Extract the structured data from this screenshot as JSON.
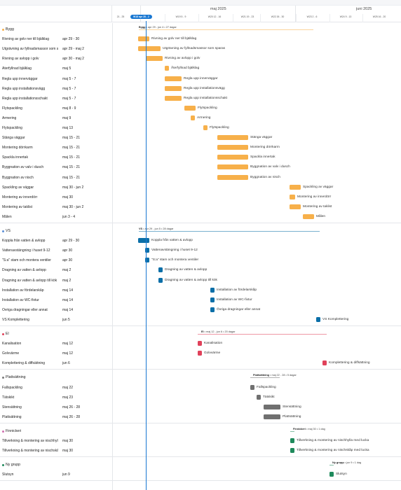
{
  "header": {
    "months": [
      {
        "label": "maj 2025"
      },
      {
        "label": "juni 2025"
      }
    ],
    "weeks": [
      {
        "label": "21 - 25"
      },
      {
        "label": "W18 apr 28 - 2",
        "current": true
      },
      {
        "label": "W19 5 - 9"
      },
      {
        "label": "W20 12 - 16"
      },
      {
        "label": "W21 19 - 23"
      },
      {
        "label": "W22 26 - 30"
      },
      {
        "label": "W23 2 - 6"
      },
      {
        "label": "W24 9 - 13"
      },
      {
        "label": "W25 16 - 20"
      }
    ]
  },
  "colors": {
    "Bygg": "#f7b04a",
    "VS": "#0b6fa8",
    "El": "#e0415a",
    "Plattsattning": "#707070",
    "Finnickeri": "#1f8a5c",
    "NyGrupp": "#1f8a5c",
    "accent": "#1877d2"
  },
  "groups": [
    {
      "id": "bygg",
      "name": "Bygg",
      "color": "#f7b04a",
      "dot": "#f7b04a",
      "summary": {
        "name": "Bygg",
        "text": " • apr 29 - jun 4 • 27 dagar"
      },
      "tasks": [
        {
          "name": "Rivning av golv ner till bjälklag",
          "dates": "apr 29 - 30",
          "label": "Rivning av golv ner till bjälklag"
        },
        {
          "name": "Utgrävning av fyllnadsmassor som sparas",
          "dates": "apr 29 - maj 2",
          "label": "Utgrävning av fyllnadsmassor som sparas"
        },
        {
          "name": "Rivning av avlopp i golv",
          "dates": "apr 30 - maj 2",
          "label": "Rivning av avlopp i golv"
        },
        {
          "name": "Återfyllnad bjälklag",
          "dates": "maj 5",
          "label": "Återfyllnad bjälklag"
        },
        {
          "name": "Regla upp innerväggar",
          "dates": "maj 5 - 7",
          "label": "Regla upp innerväggar"
        },
        {
          "name": "Regla upp installationsvägg",
          "dates": "maj 5 - 7",
          "label": "Regla upp installationsvägg"
        },
        {
          "name": "Regla upp installationsschakt",
          "dates": "maj 5 - 7",
          "label": "Regla upp installationsschakt"
        },
        {
          "name": "Flytspackling",
          "dates": "maj 8 - 9",
          "label": "Flytspackling"
        },
        {
          "name": "Armering",
          "dates": "maj 9",
          "label": "Armering"
        },
        {
          "name": "Flytspackling",
          "dates": "maj 13",
          "label": "Flytspackling"
        },
        {
          "name": "Stänga väggar",
          "dates": "maj 15 - 21",
          "label": "Stänga väggar"
        },
        {
          "name": "Montering dörrkarm",
          "dates": "maj 15 - 21",
          "label": "Montering dörrkarm"
        },
        {
          "name": "Spackla innertak",
          "dates": "maj 15 - 21",
          "label": "Spackla innertak"
        },
        {
          "name": "Byggnation av valv i dusch",
          "dates": "maj 15 - 21",
          "label": "Byggnation av valv i dusch"
        },
        {
          "name": "Byggnation av nisch",
          "dates": "maj 15 - 21",
          "label": "Byggnation av nisch"
        },
        {
          "name": "Spackling av väggar",
          "dates": "maj 30 - jun 2",
          "label": "Spackling av väggar"
        },
        {
          "name": "Montering av innerdörr",
          "dates": "maj 30",
          "label": "Montering av innerdörr"
        },
        {
          "name": "Montering av taklist",
          "dates": "maj 30 - jun 2",
          "label": "Montering av taklist"
        },
        {
          "name": "Målen",
          "dates": "jun 3 - 4",
          "label": "Målen"
        }
      ]
    },
    {
      "id": "vs",
      "name": "VS",
      "color": "#0b6fa8",
      "dot": "#5b8fd8",
      "summary": {
        "name": "VS",
        "text": " • apr 29 - jun 5 • 28 dagar"
      },
      "tasks": [
        {
          "name": "Koppla från vatten & avlopp",
          "dates": "apr 29 - 30",
          "label": "Koppla från vatten & avlopp"
        },
        {
          "name": "Vattenavstängning i huset 9-12",
          "dates": "apr 30",
          "label": "Vattenavstängning i huset 9-12"
        },
        {
          "name": "\"S:a\" stam och montera ventiler",
          "dates": "apr 30",
          "label": "\"S:a\" stam och montera ventiler"
        },
        {
          "name": "Dragning av vatten & avlopp",
          "dates": "maj 2",
          "label": "Dragning av vatten & avlopp"
        },
        {
          "name": "Dragning av vatten & avlopp till kök",
          "dates": "maj 2",
          "label": "Dragning av vatten & avlopp till kök"
        },
        {
          "name": "Installation av fördelarskåp",
          "dates": "maj 14",
          "label": "Installation av fördelarskåp"
        },
        {
          "name": "Installation av WC-fixtur",
          "dates": "maj 14",
          "label": "Installation av WC-fixtur"
        },
        {
          "name": "Övriga dragningar eller annat",
          "dates": "maj 14",
          "label": "Övriga dragningar eller annat"
        },
        {
          "name": "VS Komplettering",
          "dates": "jun 5",
          "label": "VS Komplettering"
        }
      ]
    },
    {
      "id": "el",
      "name": "El",
      "color": "#e0415a",
      "dot": "#e0415a",
      "summary": {
        "name": "El",
        "text": " • maj 12 - jun 6 • 20 dagar"
      },
      "tasks": [
        {
          "name": "Kanalisation",
          "dates": "maj 12",
          "label": "Kanalisation"
        },
        {
          "name": "Golvvärme",
          "dates": "maj 12",
          "label": "Golvvärme"
        },
        {
          "name": "Komplettering & diffsättning",
          "dates": "jun 6",
          "label": "Komplettering & diffsättning"
        }
      ]
    },
    {
      "id": "platt",
      "name": "Plattsättning",
      "color": "#707070",
      "dot": "#7a7a7a",
      "summary": {
        "name": "Plattsättning",
        "text": " • maj 22 - 28 • 5 dagar"
      },
      "tasks": [
        {
          "name": "Fallspackling",
          "dates": "maj 22",
          "label": "Fallspackling"
        },
        {
          "name": "Tätskikt",
          "dates": "maj 23",
          "label": "Tätskikt"
        },
        {
          "name": "Stensättning",
          "dates": "maj 26 - 28",
          "label": "Stensättning"
        },
        {
          "name": "Plattsättning",
          "dates": "maj 26 - 28",
          "label": "Plattsättning"
        }
      ]
    },
    {
      "id": "finn",
      "name": "Finnickeri",
      "color": "#1f8a5c",
      "dot": "#d070b0",
      "summary": {
        "name": "Finnickeri",
        "text": " • maj 30 • 1 dag"
      },
      "tasks": [
        {
          "name": "Tillverkning & montering av nischhylla med lucka",
          "dates": "maj 30",
          "label": "Tillverkning & montering av nischhylla med lucka"
        },
        {
          "name": "Tillverkning & montering av nischskåp med lucka",
          "dates": "maj 30",
          "label": "Tillverkning & montering av nischskåp med lucka"
        }
      ]
    },
    {
      "id": "ny",
      "name": "Ny grupp",
      "color": "#1f8a5c",
      "dot": "#1f8a5c",
      "summary": {
        "name": "Ny grupp",
        "text": " • jun 9 • 1 dag"
      },
      "tasks": [
        {
          "name": "Slutsyn",
          "dates": "jun 9",
          "label": "Slutsyn"
        }
      ]
    }
  ]
}
